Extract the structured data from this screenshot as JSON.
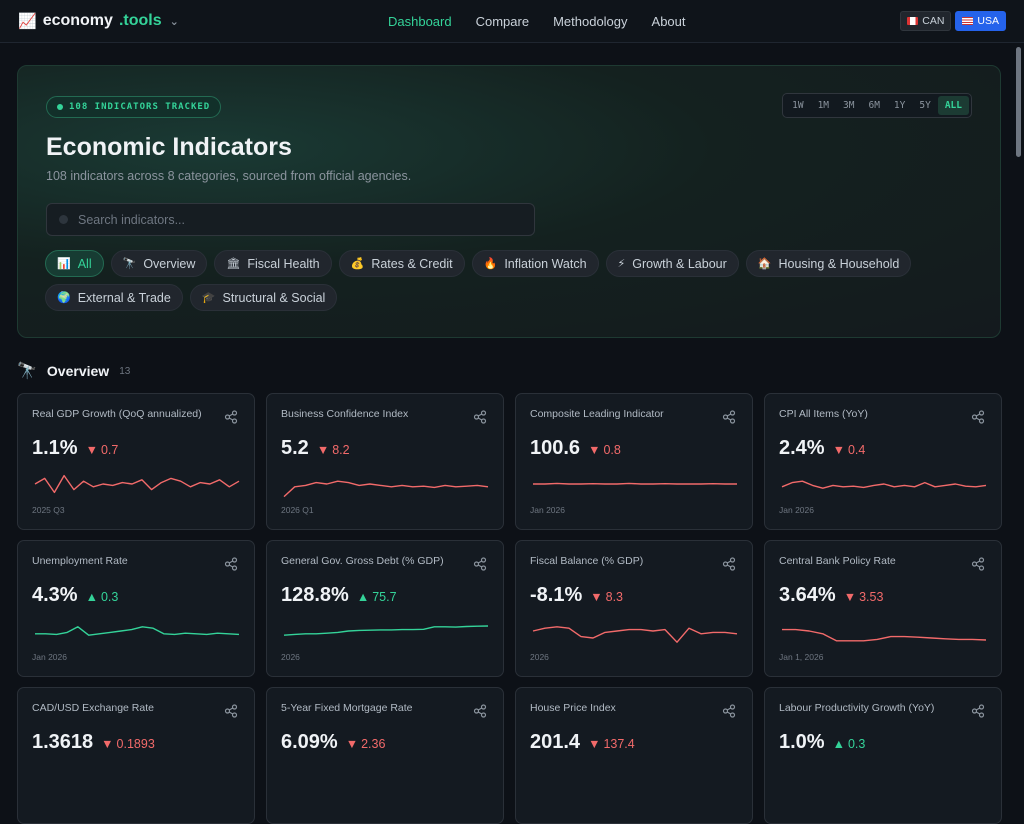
{
  "brand": {
    "icon": "chart-emoji",
    "name": "economy",
    "tld": ".tools"
  },
  "nav": [
    "Dashboard",
    "Compare",
    "Methodology",
    "About"
  ],
  "country": [
    {
      "code": "CAN",
      "active": false
    },
    {
      "code": "USA",
      "active": true
    }
  ],
  "hero": {
    "tracked": "108 INDICATORS TRACKED",
    "title": "Economic Indicators",
    "subtitle": "108 indicators across 8 categories, sourced from official agencies.",
    "search_placeholder": "Search indicators...",
    "ranges": [
      "1W",
      "1M",
      "3M",
      "6M",
      "1Y",
      "5Y",
      "ALL"
    ],
    "active_range": "ALL",
    "chips": [
      {
        "icon": "📊",
        "label": "All",
        "active": true
      },
      {
        "icon": "🔭",
        "label": "Overview"
      },
      {
        "icon": "🏛",
        "label": "Fiscal Health"
      },
      {
        "icon": "💰",
        "label": "Rates & Credit"
      },
      {
        "icon": "🔥",
        "label": "Inflation Watch"
      },
      {
        "icon": "⚡",
        "label": "Growth & Labour"
      },
      {
        "icon": "🏠",
        "label": "Housing & Household"
      },
      {
        "icon": "🌍",
        "label": "External & Trade"
      },
      {
        "icon": "🎓",
        "label": "Structural & Social"
      }
    ]
  },
  "section": {
    "icon": "🔭",
    "title": "Overview",
    "count": "13"
  },
  "colors": {
    "up": "#34d399",
    "down": "#f26a6a",
    "accent": "#34d399"
  },
  "cards": [
    {
      "title": "Real GDP Growth (QoQ annualized)",
      "value": "1.1%",
      "dir": "down",
      "change": "0.7",
      "date": "2025 Q3",
      "spark": [
        0.5,
        0.3,
        0.8,
        0.2,
        0.7,
        0.4,
        0.6,
        0.5,
        0.55,
        0.45,
        0.5,
        0.35,
        0.7,
        0.45,
        0.3,
        0.4,
        0.6,
        0.45,
        0.5,
        0.35,
        0.6,
        0.4
      ]
    },
    {
      "title": "Business Confidence Index",
      "value": "5.2",
      "dir": "down",
      "change": "8.2",
      "date": "2026 Q1",
      "spark": [
        0.95,
        0.6,
        0.55,
        0.45,
        0.5,
        0.4,
        0.45,
        0.55,
        0.5,
        0.55,
        0.6,
        0.55,
        0.6,
        0.58,
        0.62,
        0.55,
        0.6,
        0.58,
        0.55,
        0.6
      ]
    },
    {
      "title": "Composite Leading Indicator",
      "value": "100.6",
      "dir": "down",
      "change": "0.8",
      "date": "Jan 2026",
      "spark": [
        0.5,
        0.5,
        0.48,
        0.5,
        0.5,
        0.49,
        0.5,
        0.5,
        0.48,
        0.5,
        0.5,
        0.49,
        0.5,
        0.5,
        0.5,
        0.49,
        0.5,
        0.5
      ]
    },
    {
      "title": "CPI All Items (YoY)",
      "value": "2.4%",
      "dir": "down",
      "change": "0.4",
      "date": "Jan 2026",
      "spark": [
        0.6,
        0.45,
        0.4,
        0.55,
        0.65,
        0.55,
        0.6,
        0.58,
        0.62,
        0.55,
        0.5,
        0.6,
        0.55,
        0.6,
        0.45,
        0.6,
        0.55,
        0.5,
        0.58,
        0.6,
        0.55
      ]
    },
    {
      "title": "Unemployment Rate",
      "value": "4.3%",
      "dir": "up",
      "change": "0.3",
      "date": "Jan 2026",
      "spark": [
        0.6,
        0.6,
        0.62,
        0.55,
        0.35,
        0.65,
        0.6,
        0.55,
        0.5,
        0.45,
        0.35,
        0.4,
        0.6,
        0.62,
        0.58,
        0.6,
        0.62,
        0.58,
        0.6,
        0.62
      ]
    },
    {
      "title": "General Gov. Gross Debt (% GDP)",
      "value": "128.8%",
      "dir": "up",
      "change": "75.7",
      "date": "2026",
      "spark": [
        0.65,
        0.62,
        0.6,
        0.6,
        0.58,
        0.55,
        0.5,
        0.48,
        0.47,
        0.46,
        0.46,
        0.45,
        0.45,
        0.44,
        0.35,
        0.35,
        0.36,
        0.34,
        0.33,
        0.32
      ]
    },
    {
      "title": "Fiscal Balance (% GDP)",
      "value": "-8.1%",
      "dir": "down",
      "change": "8.3",
      "date": "2026",
      "spark": [
        0.5,
        0.4,
        0.35,
        0.4,
        0.7,
        0.75,
        0.55,
        0.5,
        0.45,
        0.45,
        0.5,
        0.45,
        0.9,
        0.4,
        0.6,
        0.55,
        0.55,
        0.6
      ]
    },
    {
      "title": "Central Bank Policy Rate",
      "value": "3.64%",
      "dir": "down",
      "change": "3.53",
      "date": "Jan 1, 2026",
      "spark": [
        0.45,
        0.45,
        0.5,
        0.6,
        0.85,
        0.85,
        0.85,
        0.8,
        0.7,
        0.7,
        0.72,
        0.75,
        0.78,
        0.8,
        0.8,
        0.82
      ]
    },
    {
      "title": "CAD/USD Exchange Rate",
      "value": "1.3618",
      "dir": "down",
      "change": "0.1893",
      "date": "",
      "spark": []
    },
    {
      "title": "5-Year Fixed Mortgage Rate",
      "value": "6.09%",
      "dir": "down",
      "change": "2.36",
      "date": "",
      "spark": []
    },
    {
      "title": "House Price Index",
      "value": "201.4",
      "dir": "down",
      "change": "137.4",
      "date": "",
      "spark": []
    },
    {
      "title": "Labour Productivity Growth (YoY)",
      "value": "1.0%",
      "dir": "up",
      "change": "0.3",
      "date": "",
      "spark": []
    }
  ]
}
